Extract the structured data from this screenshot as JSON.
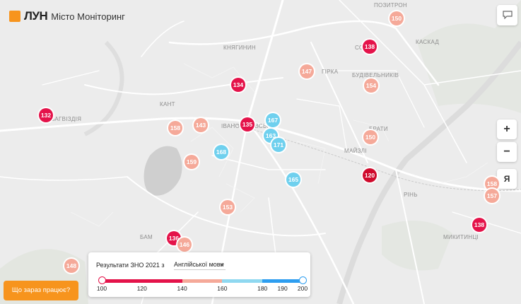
{
  "header": {
    "brand": "ЛУН",
    "subtitle": "Місто Моніторинг"
  },
  "controls": {
    "zoom_in": "+",
    "zoom_out": "−",
    "locate": "Я",
    "chat_icon": "chat-bubble-icon"
  },
  "areas": [
    {
      "id": "pozytron",
      "label": "ПОЗИТРОН"
    },
    {
      "id": "kaskad",
      "label": "КАСКАД"
    },
    {
      "id": "knyahynyn",
      "label": "КНЯГИНИН"
    },
    {
      "id": "sofiivka",
      "label": "СОФ"
    },
    {
      "id": "hirka",
      "label": "ГІРКА"
    },
    {
      "id": "budivelnykiv",
      "label": "БУДІВЕЛЬНИКІВ"
    },
    {
      "id": "kant",
      "label": "КАНТ"
    },
    {
      "id": "bahvizdia",
      "label": "БАГВІЗДІЯ"
    },
    {
      "id": "ivano",
      "label": "ІВАНО"
    },
    {
      "id": "ivsk",
      "label": "ІВСЬК"
    },
    {
      "id": "braty",
      "label": "БРАТИ"
    },
    {
      "id": "maizli",
      "label": "МАЙЗЛІ"
    },
    {
      "id": "rin",
      "label": "РІНЬ"
    },
    {
      "id": "bam",
      "label": "БАМ"
    },
    {
      "id": "mykytyntsi",
      "label": "МИКИТИНЦІ"
    }
  ],
  "markers": [
    {
      "value": "150",
      "color": "#f5a999"
    },
    {
      "value": "138",
      "color": "#e4134a"
    },
    {
      "value": "147",
      "color": "#f5a999"
    },
    {
      "value": "154",
      "color": "#f5a999"
    },
    {
      "value": "134",
      "color": "#e4134a"
    },
    {
      "value": "132",
      "color": "#e4134a"
    },
    {
      "value": "158",
      "color": "#f5a999"
    },
    {
      "value": "143",
      "color": "#f5a999"
    },
    {
      "value": "135",
      "color": "#e4134a"
    },
    {
      "value": "167",
      "color": "#6fd0ee"
    },
    {
      "value": "163",
      "color": "#6fd0ee"
    },
    {
      "value": "171",
      "color": "#6fd0ee"
    },
    {
      "value": "168",
      "color": "#6fd0ee"
    },
    {
      "value": "150",
      "color": "#f5a999"
    },
    {
      "value": "159",
      "color": "#f5a999"
    },
    {
      "value": "165",
      "color": "#6fd0ee"
    },
    {
      "value": "120",
      "color": "#cf0a2c"
    },
    {
      "value": "158",
      "color": "#f5a999"
    },
    {
      "value": "157",
      "color": "#f5a999"
    },
    {
      "value": "153",
      "color": "#f5a999"
    },
    {
      "value": "138",
      "color": "#e4134a"
    },
    {
      "value": "136",
      "color": "#e4134a"
    },
    {
      "value": "146",
      "color": "#f5a999"
    },
    {
      "value": "148",
      "color": "#f5a999"
    }
  ],
  "legend": {
    "title": "Результати ЗНО 2021 з",
    "subject": "Англійської мови",
    "ticks": [
      "100",
      "120",
      "140",
      "160",
      "180",
      "190",
      "200"
    ],
    "segments": [
      {
        "from": 100,
        "to": 140,
        "color": "#e4134a"
      },
      {
        "from": 140,
        "to": 160,
        "color": "#f5a999"
      },
      {
        "from": 160,
        "to": 180,
        "color": "#8fd8f0"
      },
      {
        "from": 180,
        "to": 200,
        "color": "#2e9ef0"
      }
    ]
  },
  "cta": {
    "label": "Що зараз працює?"
  }
}
